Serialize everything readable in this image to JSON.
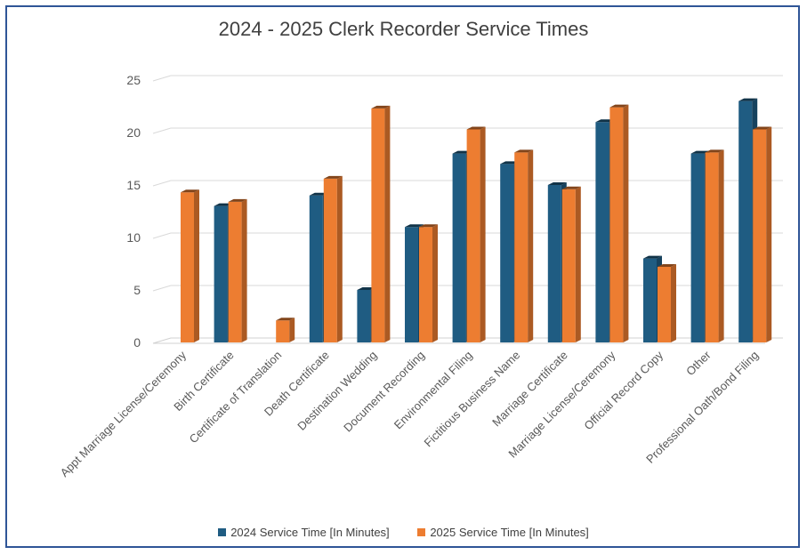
{
  "chart_data": {
    "type": "bar",
    "title": "2024 - 2025 Clerk Recorder Service Times",
    "categories": [
      "Appt Marriage License/Ceremony",
      "Birth Certificate",
      "Certificate of Translation",
      "Death Certificate",
      "Destination Wedding",
      "Document Recording",
      "Environmental Filing",
      "Fictitious Business Name",
      "Marriage Certificate",
      "Marriage License/Ceremony",
      "Official Record Copy",
      "Other",
      "Professional  Oath/Bond Filing"
    ],
    "series": [
      {
        "name": "2024 Service Time [In Minutes]",
        "color": "#1f5c82",
        "values": [
          null,
          13,
          null,
          14,
          5,
          11,
          18,
          17,
          15,
          21,
          8,
          18,
          23
        ]
      },
      {
        "name": "2025 Service Time [In Minutes]",
        "color": "#ed7d31",
        "values": [
          14.3,
          13.4,
          2.1,
          15.6,
          22.3,
          11,
          20.3,
          18.1,
          14.6,
          22.4,
          7.2,
          18.1,
          20.3
        ]
      }
    ],
    "y_ticks": [
      "0",
      "5",
      "10",
      "15",
      "20",
      "25"
    ],
    "ylim": [
      0,
      25
    ],
    "xlabel": "",
    "ylabel": "",
    "grid": true,
    "legend_position": "bottom"
  }
}
